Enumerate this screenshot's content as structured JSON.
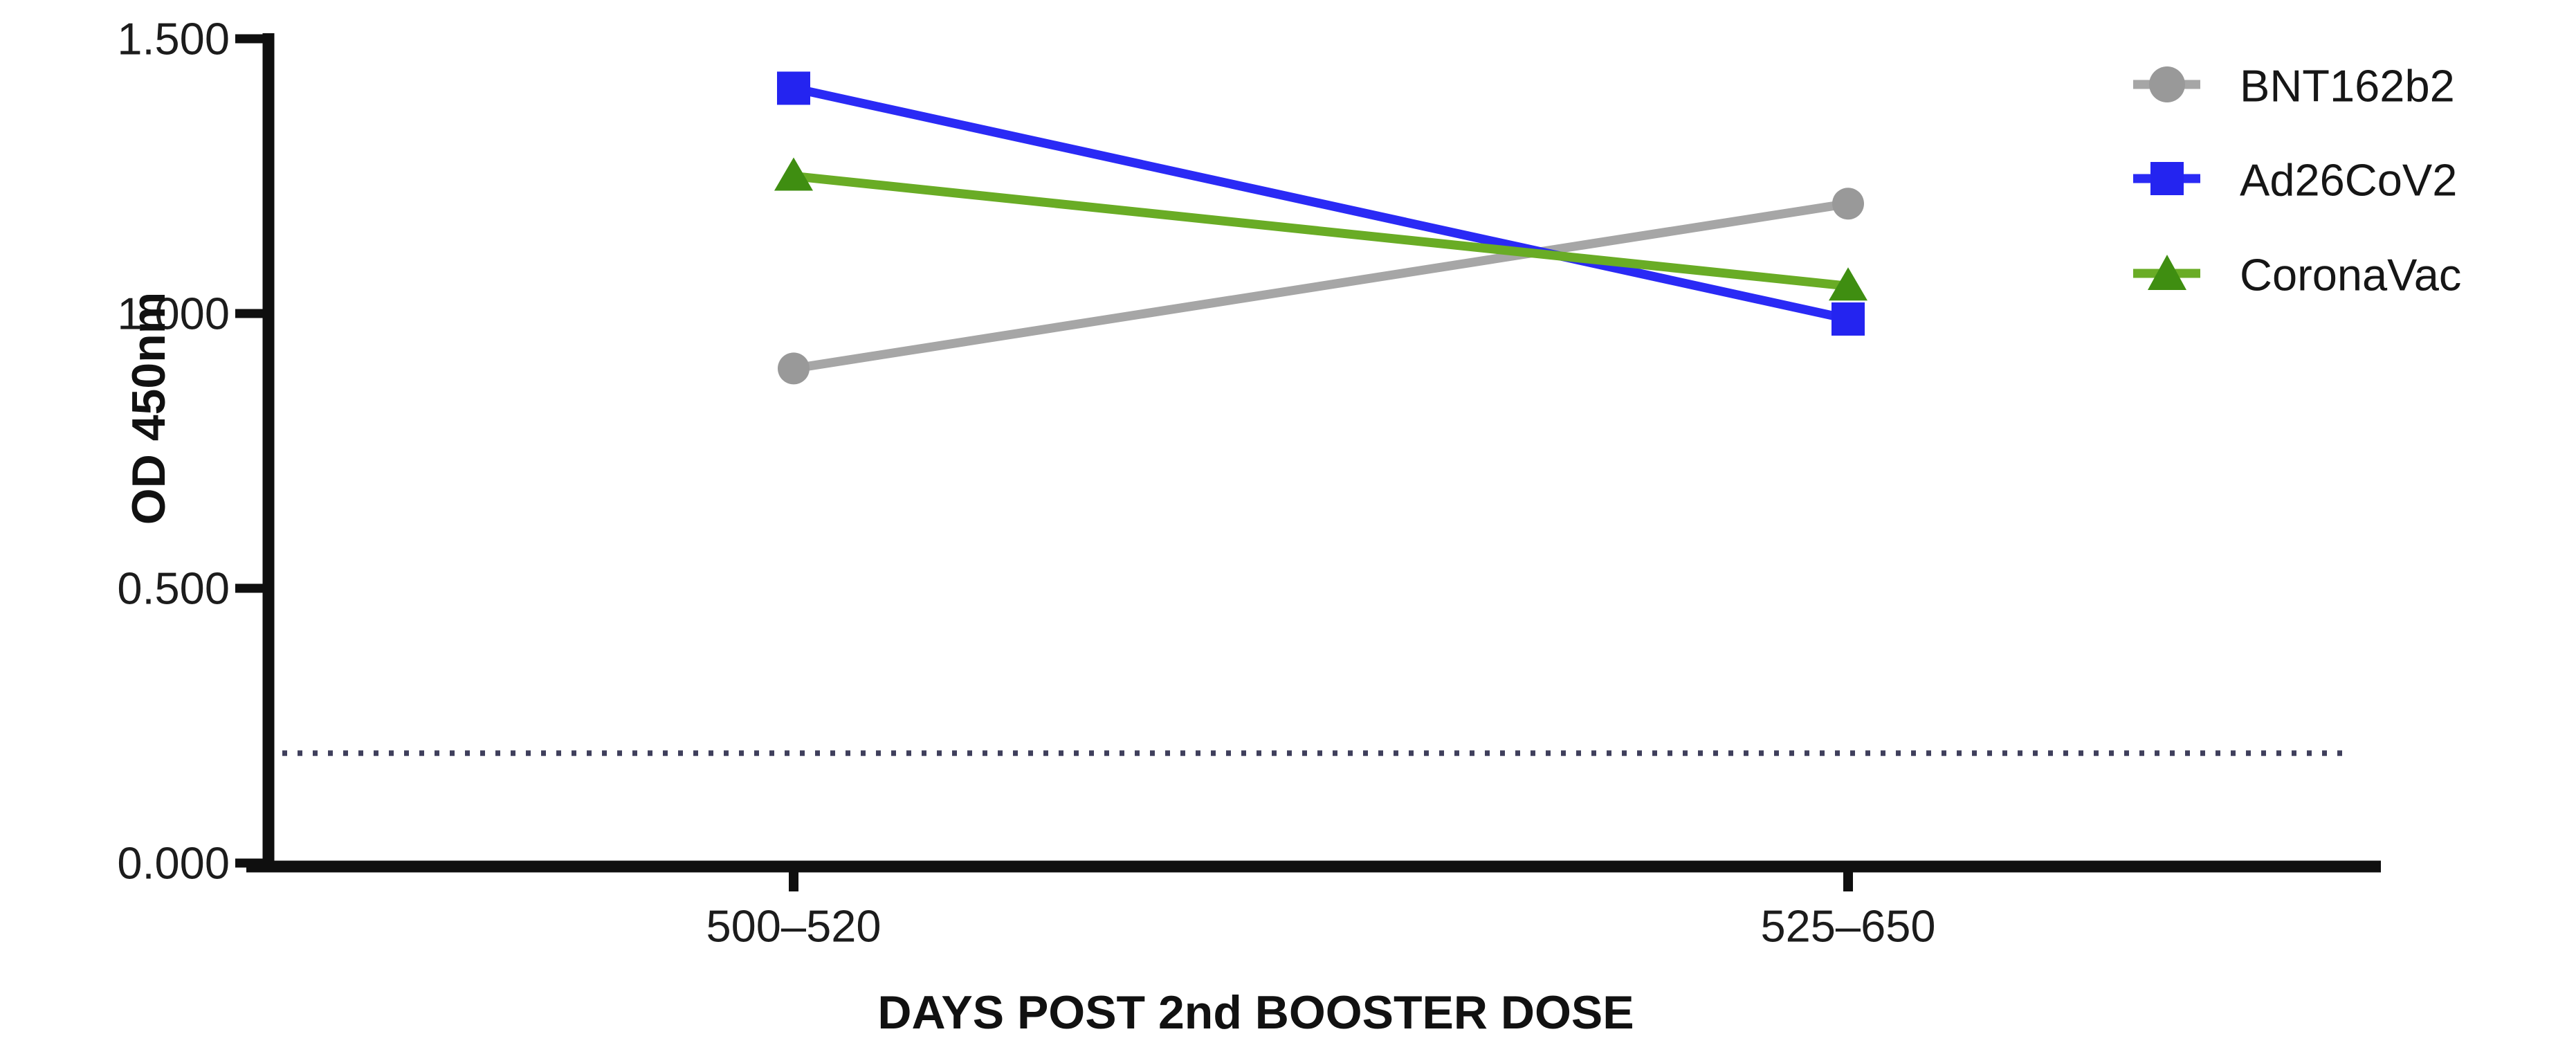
{
  "chart_data": {
    "type": "line",
    "title": "",
    "xlabel": "DAYS POST 2nd BOOSTER DOSE",
    "ylabel": "OD 450nm",
    "categories": [
      "500–520",
      "525–650"
    ],
    "y_ticks": [
      "1.500",
      "1.000",
      "0.500",
      "0.000"
    ],
    "ylim": [
      0,
      1.5
    ],
    "grid": false,
    "legend_position": "top-right",
    "series": [
      {
        "name": "BNT162b2",
        "marker": "circle",
        "color": "#999999",
        "line_color": "#a6a6a6",
        "values": [
          0.9,
          1.2
        ]
      },
      {
        "name": "Ad26CoV2",
        "marker": "square",
        "color": "#2424f0",
        "line_color": "#2a2af5",
        "values": [
          1.41,
          0.99
        ]
      },
      {
        "name": "CoronaVac",
        "marker": "triangle",
        "color": "#3f8e11",
        "line_color": "#69ac25",
        "values": [
          1.25,
          1.05
        ]
      }
    ],
    "cutoff_line": {
      "value": 0.2,
      "style": "dotted",
      "color": "#3f3f5c"
    },
    "axis_color": "#0f0f0f"
  }
}
